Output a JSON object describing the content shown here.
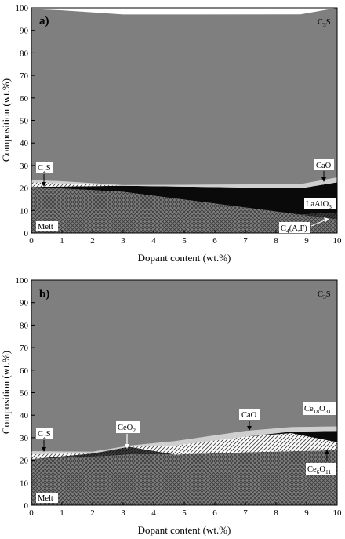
{
  "chart_data": [
    {
      "type": "area",
      "panel_label": "a)",
      "xlabel": "Dopant content (wt.%)",
      "ylabel": "Composition (wt.%)",
      "xlim": [
        0,
        10
      ],
      "ylim": [
        0,
        100
      ],
      "x_ticks": [
        0,
        1,
        2,
        3,
        4,
        5,
        6,
        7,
        8,
        9,
        10
      ],
      "y_ticks": [
        0,
        10,
        20,
        30,
        40,
        50,
        60,
        70,
        80,
        90,
        100
      ],
      "stacked": true,
      "series": [
        {
          "name": "Melt",
          "pattern": "crosshatch",
          "x": [
            0,
            3,
            8.8,
            10
          ],
          "values": [
            20.5,
            18.3,
            8.0,
            6.0
          ]
        },
        {
          "name": "C4AF",
          "pattern": "dark-hatch",
          "x": [
            0,
            3,
            8.8,
            10
          ],
          "values": [
            0,
            0,
            0.2,
            3.0
          ]
        },
        {
          "name": "LaAlO3",
          "pattern": "black",
          "x": [
            0,
            3,
            10
          ],
          "values": [
            0,
            2.7,
            13.5
          ]
        },
        {
          "name": "C2S",
          "pattern": "diagonal-hatch",
          "x": [
            0,
            3,
            10
          ],
          "values": [
            2.0,
            0,
            0
          ]
        },
        {
          "name": "CaO",
          "pattern": "light-gray",
          "x": [
            0,
            1,
            3,
            10
          ],
          "values": [
            1.0,
            1.0,
            0.3,
            2.2
          ]
        },
        {
          "name": "C3S",
          "pattern": "gray",
          "x": [
            0,
            10
          ],
          "values": [
            76.0,
            75.3
          ]
        }
      ],
      "annotations": [
        {
          "label": "C",
          "sub": "3",
          "tail": "S"
        },
        {
          "label": "C",
          "sub": "2",
          "tail": "S"
        },
        {
          "label": "CaO"
        },
        {
          "label": "LaAlO",
          "sub": "3"
        },
        {
          "label": "Melt"
        },
        {
          "label": "C",
          "sub": "4",
          "tail": "(A,F)"
        }
      ]
    },
    {
      "type": "area",
      "panel_label": "b)",
      "xlabel": "Dopant content (wt.%)",
      "ylabel": "Composition (wt.%)",
      "xlim": [
        0,
        10
      ],
      "ylim": [
        0,
        100
      ],
      "x_ticks": [
        0,
        1,
        2,
        3,
        4,
        5,
        6,
        7,
        8,
        9,
        10
      ],
      "y_ticks": [
        0,
        10,
        20,
        30,
        40,
        50,
        60,
        70,
        80,
        90,
        100
      ],
      "stacked": true,
      "series": [
        {
          "name": "Melt",
          "pattern": "crosshatch",
          "x": [
            0,
            2,
            3.2,
            4.7,
            7,
            8.5,
            10
          ],
          "values": [
            20.5,
            21.5,
            22.5,
            22.5,
            23.5,
            24.0,
            24.5
          ]
        },
        {
          "name": "CeO2",
          "pattern": "dark-hatch",
          "x": [
            0,
            2,
            3.2,
            4.7,
            7,
            8.5,
            10
          ],
          "values": [
            0,
            1.5,
            3.5,
            0,
            0,
            0,
            0
          ]
        },
        {
          "name": "Ce6O11",
          "pattern": "diagonal-hatch",
          "x": [
            0,
            2,
            3.2,
            4.7,
            7,
            8.5,
            10
          ],
          "values": [
            0,
            0,
            0,
            4.0,
            7.0,
            8.0,
            3.5
          ]
        },
        {
          "name": "Ce18O31",
          "pattern": "black",
          "x": [
            0,
            2,
            3.2,
            4.7,
            7,
            8.5,
            10
          ],
          "values": [
            0,
            0,
            0,
            0,
            0,
            0.7,
            5.0
          ]
        },
        {
          "name": "C2S",
          "pattern": "diagonal-hatch",
          "x": [
            0,
            2,
            3.2,
            4.7,
            7,
            8.5,
            10
          ],
          "values": [
            2.2,
            0,
            0,
            0,
            0,
            0,
            0
          ]
        },
        {
          "name": "CaO",
          "pattern": "light-gray",
          "x": [
            0,
            2,
            3.2,
            4.7,
            7,
            8.5,
            10
          ],
          "values": [
            1.3,
            0.8,
            0.5,
            2.0,
            2.5,
            2.0,
            2.0
          ]
        },
        {
          "name": "C3S",
          "pattern": "gray",
          "x": [
            0,
            2,
            3.2,
            4.7,
            7,
            8.5,
            10
          ],
          "values": [
            76.0,
            76.2,
            73.5,
            71.5,
            67.0,
            65.3,
            65.0
          ]
        }
      ],
      "annotations": [
        {
          "label": "C",
          "sub": "3",
          "tail": "S"
        },
        {
          "label": "C",
          "sub": "2",
          "tail": "S"
        },
        {
          "label": "CeO",
          "sub": "2"
        },
        {
          "label": "CaO"
        },
        {
          "label": "Ce",
          "sub": "18",
          "mid": "O",
          "sub2": "31"
        },
        {
          "label": "Ce",
          "sub": "6",
          "mid": "O",
          "sub2": "11"
        },
        {
          "label": "Melt"
        }
      ]
    }
  ]
}
